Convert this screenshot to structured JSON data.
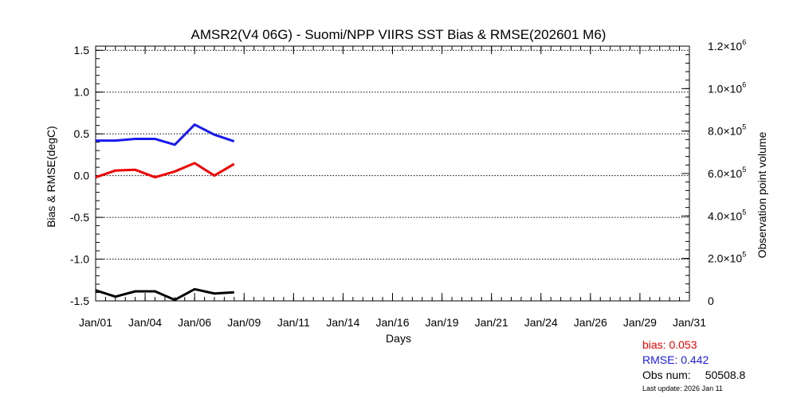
{
  "chart_data": {
    "type": "line",
    "title": "AMSR2(V4 06G) - Suomi/NPP VIIRS SST Bias & RMSE(202601 M6)",
    "xlabel": "Days",
    "ylabel": "Bias & RMSE(degC)",
    "y2label": "Observation point volume",
    "xlim": [
      1,
      31
    ],
    "ylim": [
      -1.5,
      1.55
    ],
    "y2lim": [
      0,
      1200000
    ],
    "x_tick_values": [
      1,
      3.5,
      6,
      8.5,
      11,
      13.5,
      16,
      18.5,
      21,
      23.5,
      26,
      28.5,
      31
    ],
    "x_tick_labels": [
      "Jan/01",
      "Jan/04",
      "Jan/06",
      "Jan/09",
      "Jan/11",
      "Jan/14",
      "Jan/16",
      "Jan/19",
      "Jan/21",
      "Jan/24",
      "Jan/26",
      "Jan/29",
      "Jan/31"
    ],
    "y_ticks": [
      {
        "value": 1.5,
        "label": "1.5"
      },
      {
        "value": 1.0,
        "label": "1.0"
      },
      {
        "value": 0.5,
        "label": "0.5"
      },
      {
        "value": 0.0,
        "label": "0.0"
      },
      {
        "value": -0.5,
        "label": "-0.5"
      },
      {
        "value": -1.0,
        "label": "-1.0"
      },
      {
        "value": -1.5,
        "label": "-1.5"
      }
    ],
    "y2_ticks": [
      {
        "value": 1200000,
        "mantissa": "1.2",
        "exp": "6"
      },
      {
        "value": 1000000,
        "mantissa": "1.0",
        "exp": "6"
      },
      {
        "value": 800000,
        "mantissa": "8.0",
        "exp": "5"
      },
      {
        "value": 600000,
        "mantissa": "6.0",
        "exp": "5"
      },
      {
        "value": 400000,
        "mantissa": "4.0",
        "exp": "5"
      },
      {
        "value": 200000,
        "mantissa": "2.0",
        "exp": "5"
      },
      {
        "value": 0,
        "mantissa": "0",
        "exp": ""
      }
    ],
    "x_times_label": "×10",
    "grid": true,
    "series": [
      {
        "color": "#1a1aee",
        "axis": "left",
        "x": [
          1,
          2,
          3,
          4,
          5,
          6,
          7,
          8
        ],
        "values": [
          0.42,
          0.42,
          0.44,
          0.44,
          0.37,
          0.61,
          0.49,
          0.41
        ]
      },
      {
        "color": "#ee0000",
        "axis": "left",
        "x": [
          1,
          2,
          3,
          4,
          5,
          6,
          7,
          8
        ],
        "values": [
          -0.02,
          0.06,
          0.07,
          -0.02,
          0.05,
          0.15,
          0.0,
          0.14
        ]
      },
      {
        "color": "#000000",
        "axis": "right",
        "x": [
          1,
          2,
          3,
          4,
          5,
          6,
          7,
          8
        ],
        "values": [
          50000,
          20000,
          45000,
          45000,
          5000,
          55000,
          35000,
          40000
        ]
      }
    ]
  },
  "stats": {
    "bias": "bias: 0.053",
    "rmse": "RMSE: 0.442",
    "obs_label": "Obs num:",
    "obs_value": "50508.8",
    "updated": "Last update: 2026 Jan 11"
  }
}
